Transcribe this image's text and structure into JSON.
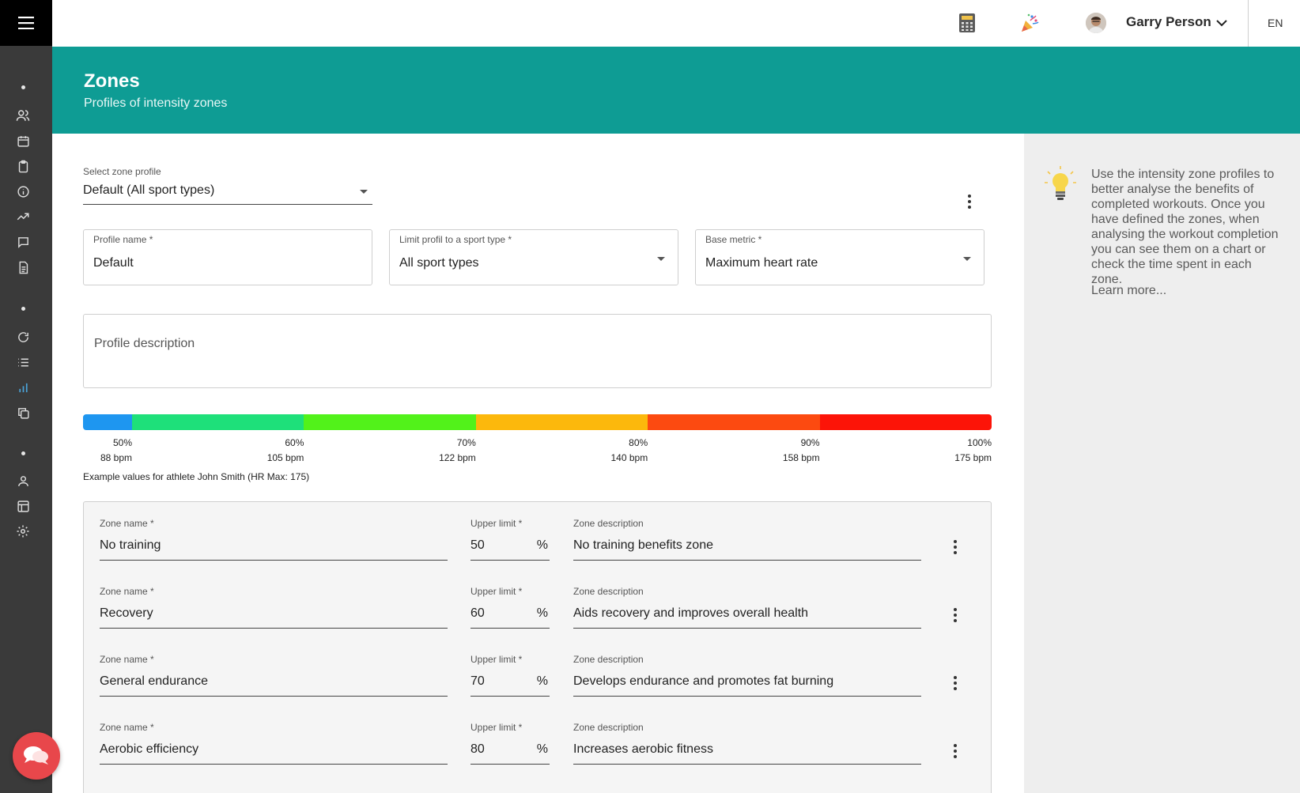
{
  "topbar": {
    "user_name": "Garry Person",
    "language": "EN",
    "icons": [
      "calculator-icon",
      "party-popper-icon",
      "avatar",
      "chevron-down-icon"
    ]
  },
  "sidebar": {
    "icons": [
      "menu-icon",
      "users-icon",
      "calendar-icon",
      "clipboard-icon",
      "info-icon",
      "trending-up-icon",
      "chat-icon",
      "document-icon",
      "refresh-icon",
      "list-icon",
      "bar-chart-icon",
      "copy-icon",
      "user-icon",
      "layout-icon",
      "settings-icon",
      "chat-bubble-icon"
    ]
  },
  "header": {
    "title": "Zones",
    "subtitle": "Profiles of intensity zones"
  },
  "form": {
    "select_label": "Select zone profile",
    "select_value": "Default (All sport types)",
    "profile_name_label": "Profile name *",
    "profile_name_value": "Default",
    "sport_type_label": "Limit profil to a sport type *",
    "sport_type_value": "All sport types",
    "base_metric_label": "Base metric *",
    "base_metric_value": "Maximum heart rate",
    "description_placeholder": "Profile description"
  },
  "zone_bar": {
    "colors": [
      "#1e96f0",
      "#1ee07a",
      "#52f21a",
      "#fcb80c",
      "#fc4a10",
      "#fc1408"
    ],
    "limits_percent": [
      50,
      60,
      70,
      80,
      90,
      100
    ],
    "ticks": [
      {
        "percent": "50%",
        "bpm": "88 bpm"
      },
      {
        "percent": "60%",
        "bpm": "105 bpm"
      },
      {
        "percent": "70%",
        "bpm": "122 bpm"
      },
      {
        "percent": "80%",
        "bpm": "140 bpm"
      },
      {
        "percent": "90%",
        "bpm": "158 bpm"
      },
      {
        "percent": "100%",
        "bpm": "175 bpm"
      }
    ],
    "example_note": "Example values for athlete John Smith (HR Max: 175)"
  },
  "zones": {
    "name_label": "Zone name *",
    "limit_label": "Upper limit *",
    "desc_label": "Zone description",
    "percent_sign": "%",
    "rows": [
      {
        "name": "No training",
        "limit": "50",
        "description": "No training benefits zone"
      },
      {
        "name": "Recovery",
        "limit": "60",
        "description": "Aids recovery and improves overall health"
      },
      {
        "name": "General endurance",
        "limit": "70",
        "description": "Develops endurance and promotes fat burning"
      },
      {
        "name": "Aerobic efficiency",
        "limit": "80",
        "description": "Increases aerobic fitness"
      }
    ]
  },
  "info": {
    "text": "Use the intensity zone profiles to better analyse the benefits of completed workouts. Once you have defined the zones, when analysing the workout completion you can see them on a chart or check the time spent in each zone.",
    "learn_more": "Learn more..."
  }
}
